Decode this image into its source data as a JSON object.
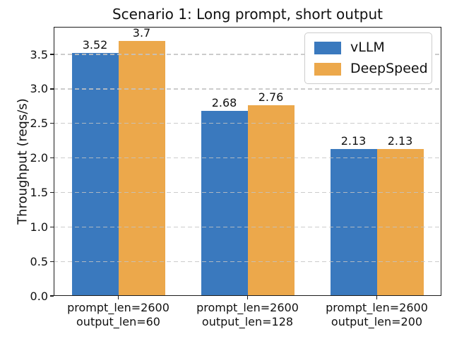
{
  "chart_data": {
    "type": "bar",
    "title": "Scenario 1: Long prompt, short output",
    "xlabel": "",
    "ylabel": "Throughput (reqs/s)",
    "categories": [
      "prompt_len=2600\noutput_len=60",
      "prompt_len=2600\noutput_len=128",
      "prompt_len=2600\noutput_len=200"
    ],
    "series": [
      {
        "name": "vLLM",
        "color": "#3A79BE",
        "values": [
          3.52,
          2.68,
          2.13
        ]
      },
      {
        "name": "DeepSpeed",
        "color": "#ECA84B",
        "values": [
          3.7,
          2.76,
          2.13
        ]
      }
    ],
    "bar_value_labels": [
      [
        "3.52",
        "2.68",
        "2.13"
      ],
      [
        "3.7",
        "2.76",
        "2.13"
      ]
    ],
    "yticks": [
      0.0,
      0.5,
      1.0,
      1.5,
      2.0,
      2.5,
      3.0,
      3.5
    ],
    "ylim": [
      0,
      3.9
    ],
    "grid": "horizontal-dashed",
    "legend_position": "upper right",
    "background": "#ffffff",
    "text_color": "#111111"
  }
}
